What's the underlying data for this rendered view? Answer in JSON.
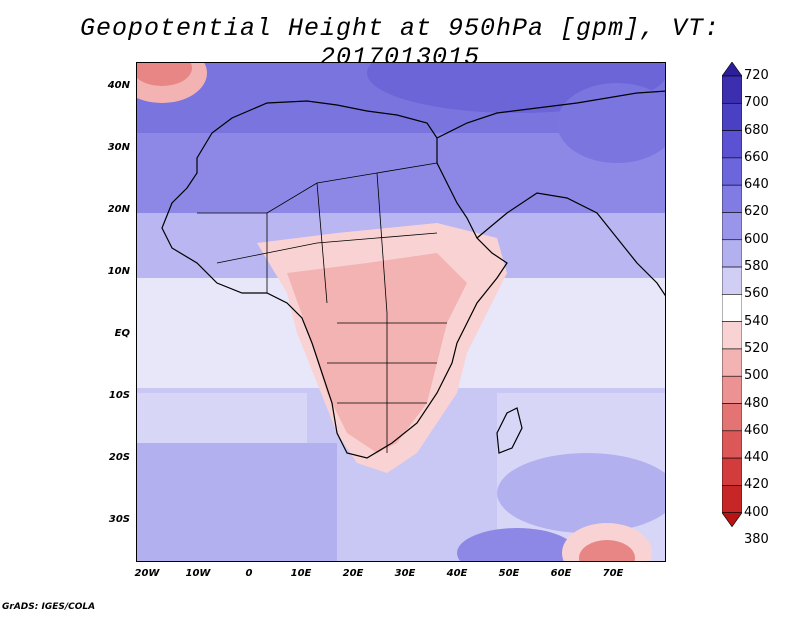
{
  "title": "Geopotential Height at 950hPa [gpm], VT: 2017013015",
  "credit": "GrADS: IGES/COLA",
  "lat_labels": [
    "40N",
    "30N",
    "20N",
    "10N",
    "EQ",
    "10S",
    "20S",
    "30S"
  ],
  "lon_labels": [
    "20W",
    "10W",
    "0",
    "10E",
    "20E",
    "30E",
    "40E",
    "50E",
    "60E",
    "70E"
  ],
  "colorbar": {
    "levels": [
      "720",
      "700",
      "680",
      "660",
      "640",
      "620",
      "600",
      "580",
      "560",
      "540",
      "520",
      "500",
      "480",
      "460",
      "440",
      "420",
      "400",
      "380"
    ],
    "colors": [
      "#2d1f99",
      "#3b2fb0",
      "#4a40c4",
      "#5a52d2",
      "#6c66dc",
      "#807ce4",
      "#9995ea",
      "#b3b0f0",
      "#d0cef5",
      "#ffffff",
      "#f9d3d3",
      "#f3b3b3",
      "#ec9292",
      "#e47474",
      "#dc5757",
      "#d33c3c",
      "#c72626",
      "#b91414"
    ]
  }
}
